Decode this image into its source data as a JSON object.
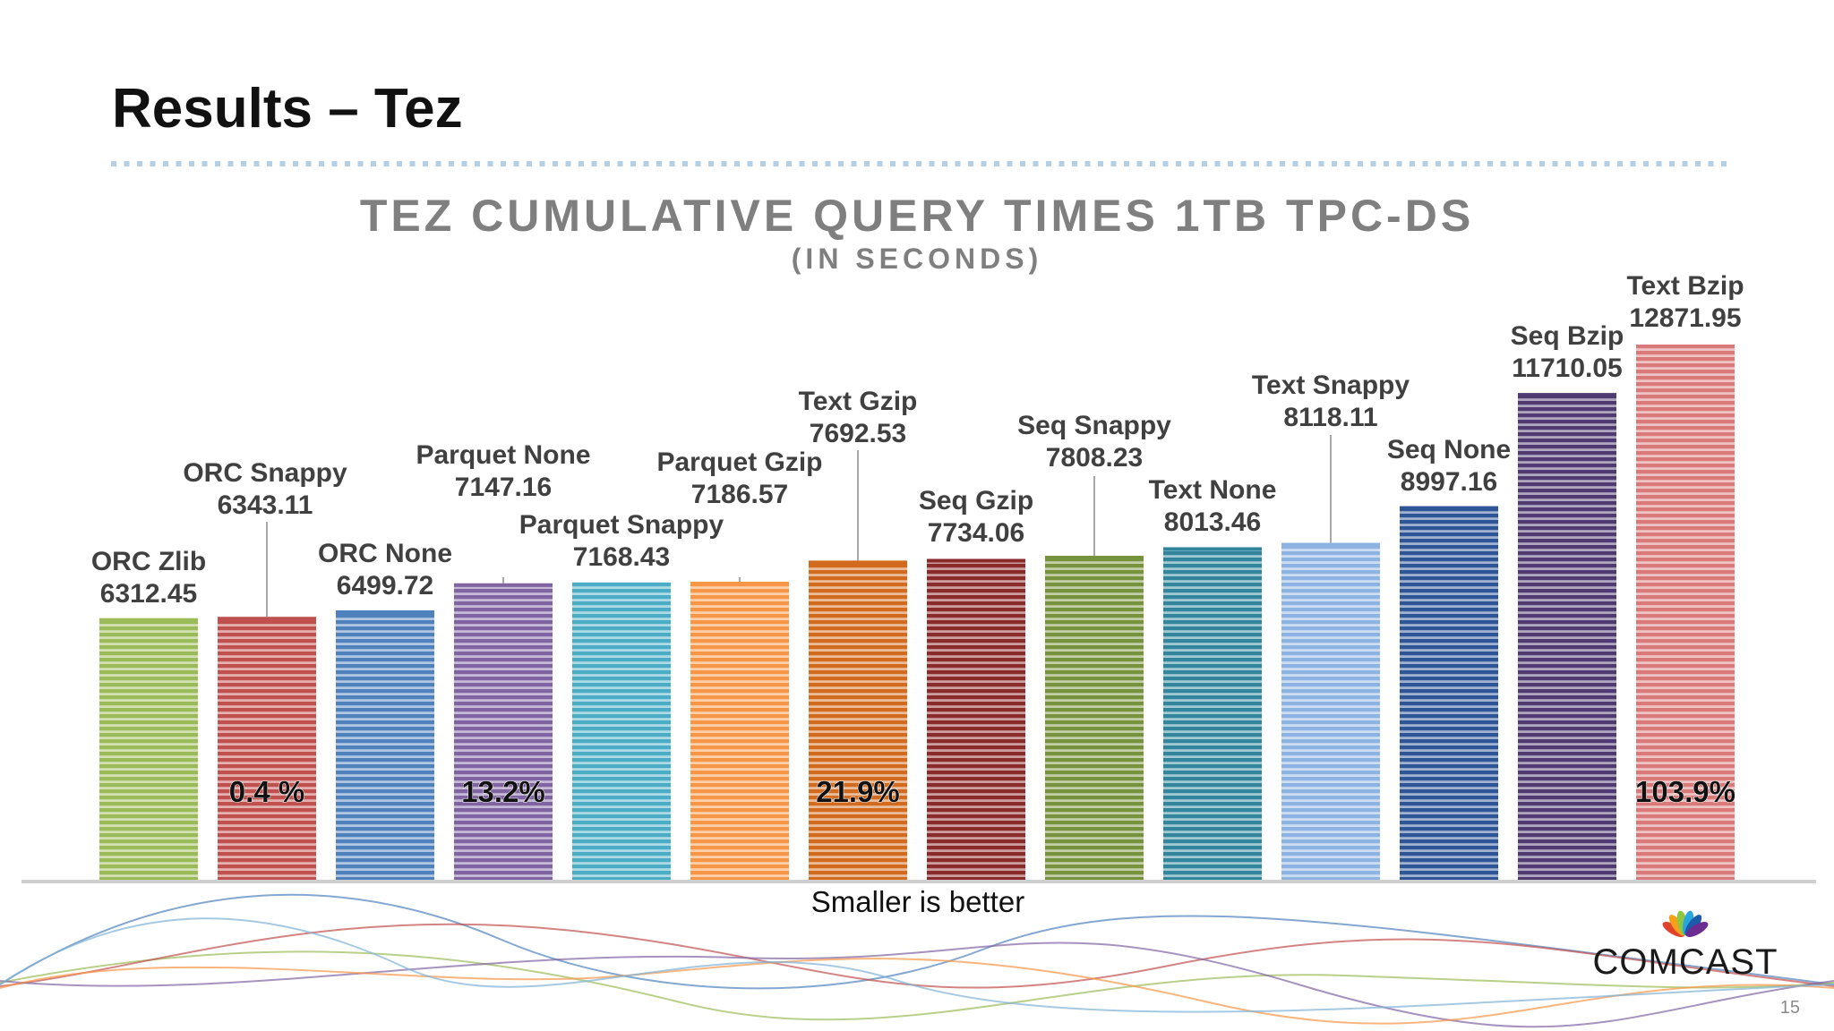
{
  "slide": {
    "title": "Results – Tez",
    "page_number": "15",
    "logo_text": "COMCAST"
  },
  "colors": {
    "divider_dots": "#b5cfe4",
    "axis": "#cfcfcf",
    "leader": "#8a8a8a",
    "label_text": "#404040",
    "title_text": "#7f7f7f"
  },
  "chart_data": {
    "type": "bar",
    "title": "TEZ CUMULATIVE QUERY TIMES 1TB TPC-DS",
    "subtitle": "(IN SECONDS)",
    "xlabel": "",
    "ylabel": "",
    "categories": [
      "ORC Zlib",
      "ORC Snappy",
      "ORC None",
      "Parquet None",
      "Parquet Snappy",
      "Parquet Gzip",
      "Text Gzip",
      "Seq Gzip",
      "Seq Snappy",
      "Text None",
      "Text Snappy",
      "Seq None",
      "Seq Bzip",
      "Text Bzip"
    ],
    "values": [
      6312.45,
      6343.11,
      6499.72,
      7147.16,
      7168.43,
      7186.57,
      7692.53,
      7734.06,
      7808.23,
      8013.46,
      8118.11,
      8997.16,
      11710.05,
      12871.95
    ],
    "data_labels": [
      "6312.45",
      "6343.11",
      "6499.72",
      "7147.16",
      "7168.43",
      "7186.57",
      "7692.53",
      "7734.06",
      "7808.23",
      "8013.46",
      "8118.11",
      "8997.16",
      "11710.05",
      "12871.95"
    ],
    "bar_colors": [
      "#9bbb59",
      "#c0504d",
      "#4f81bd",
      "#8064a2",
      "#4bacc6",
      "#f79646",
      "#d26b1e",
      "#8b2a2a",
      "#76923c",
      "#31859c",
      "#8db3e2",
      "#2e5597",
      "#4f3b72",
      "#d9797a"
    ],
    "ylim": [
      0,
      12871.95
    ],
    "annotations": [
      {
        "category_index": 1,
        "text": "0.4 %"
      },
      {
        "category_index": 3,
        "text": "13.2%"
      },
      {
        "category_index": 6,
        "text": "21.9%"
      },
      {
        "category_index": 13,
        "text": "103.9%"
      }
    ],
    "footnote": "Smaller is better",
    "grid": false,
    "legend": "none"
  }
}
